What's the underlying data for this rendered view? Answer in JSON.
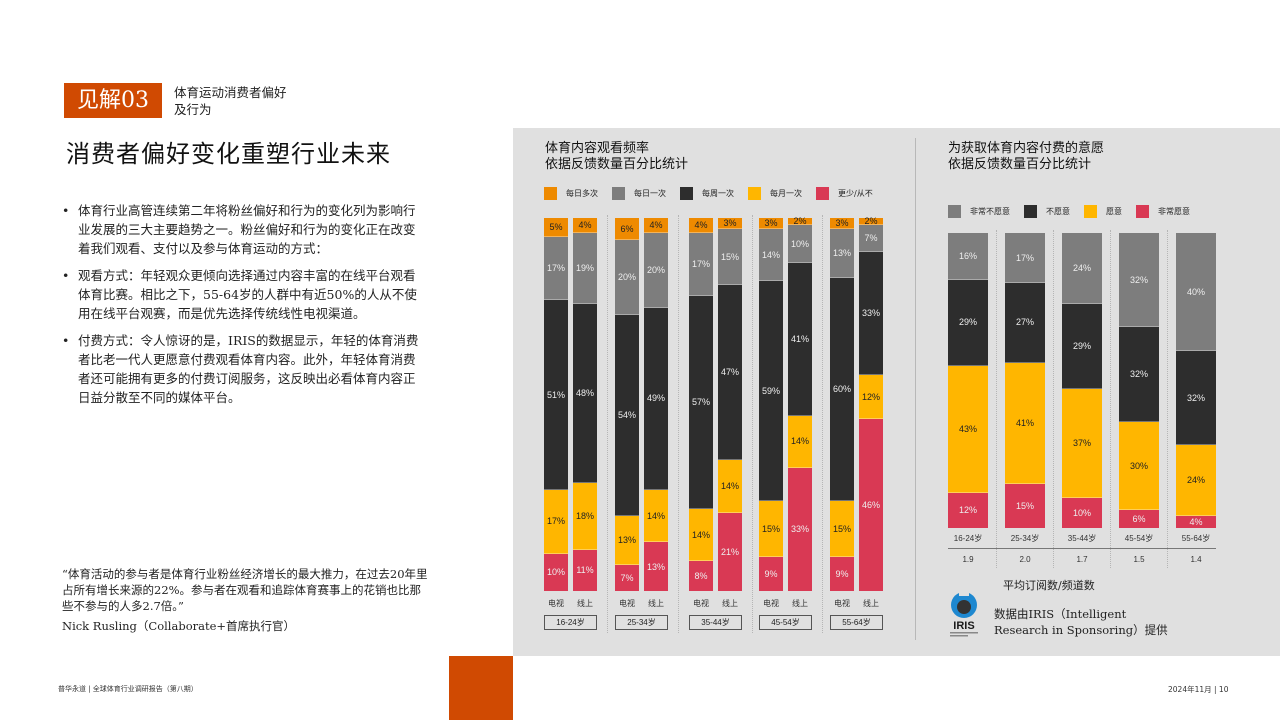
{
  "header": {
    "badge": "见解03",
    "subtitle_line1": "体育运动消费者偏好",
    "subtitle_line2": "及行为",
    "title": "消费者偏好变化重塑行业未来"
  },
  "bullets": [
    "体育行业高管连续第二年将粉丝偏好和行为的变化列为影响行业发展的三大主要趋势之一。粉丝偏好和行为的变化正在改变着我们观看、支付以及参与体育运动的方式：",
    "观看方式：年轻观众更倾向选择通过内容丰富的在线平台观看体育比赛。相比之下，55-64岁的人群中有近50%的人从不使用在线平台观赛，而是优先选择传统线性电视渠道。",
    "付费方式：令人惊讶的是，IRIS的数据显示，年轻的体育消费者比老一代人更愿意付费观看体育内容。此外，年轻体育消费者还可能拥有更多的付费订阅服务，这反映出必看体育内容正日益分散至不同的媒体平台。"
  ],
  "quote": {
    "text": "“体育活动的参与者是体育行业粉丝经济增长的最大推力，在过去20年里占所有增长来源的22%。参与者在观看和追踪体育赛事上的花销也比那些不参与的人多2.7倍。”",
    "author": "Nick Rusling（Collaborate+首席执行官）"
  },
  "footer": {
    "left": "普华永道 | 全球体育行业调研报告（第八期）",
    "right": "2024年11月 | 10"
  },
  "colors": {
    "brand_orange": "#d04a02",
    "multi_daily": "#ee8a00",
    "daily": "#7d7d7d",
    "weekly": "#2d2d2d",
    "monthly": "#ffb600",
    "rarely": "#d93954",
    "panel_bg": "#e0e0e0"
  },
  "chart_data": [
    {
      "type": "bar",
      "stacked": true,
      "title": "体育内容观看频率",
      "subtitle": "依据反馈数量百分比统计",
      "legend": [
        "每日多次",
        "每日一次",
        "每周一次",
        "每月一次",
        "更少/从不"
      ],
      "groups": [
        "16-24岁",
        "25-34岁",
        "35-44岁",
        "45-54岁",
        "55-64岁"
      ],
      "bar_labels": [
        "电视",
        "线上"
      ],
      "categories": [
        "16-24岁 电视",
        "16-24岁 线上",
        "25-34岁 电视",
        "25-34岁 线上",
        "35-44岁 电视",
        "35-44岁 线上",
        "45-54岁 电视",
        "45-54岁 线上",
        "55-64岁 电视",
        "55-64岁 线上"
      ],
      "series": [
        {
          "name": "每日多次",
          "values": [
            5,
            4,
            6,
            4,
            4,
            3,
            3,
            2,
            3,
            2
          ]
        },
        {
          "name": "每日一次",
          "values": [
            17,
            19,
            20,
            20,
            17,
            15,
            14,
            10,
            13,
            7
          ]
        },
        {
          "name": "每周一次",
          "values": [
            51,
            48,
            54,
            49,
            57,
            47,
            59,
            41,
            60,
            33
          ]
        },
        {
          "name": "每月一次",
          "values": [
            17,
            18,
            13,
            14,
            14,
            14,
            15,
            14,
            15,
            12
          ]
        },
        {
          "name": "更少/从不",
          "values": [
            10,
            11,
            7,
            13,
            8,
            21,
            9,
            33,
            9,
            46
          ]
        }
      ],
      "ylim": [
        0,
        100
      ]
    },
    {
      "type": "bar",
      "stacked": true,
      "title": "为获取体育内容付费的意愿",
      "subtitle": "依据反馈数量百分比统计",
      "legend": [
        "非常不愿意",
        "不愿意",
        "愿意",
        "非常愿意"
      ],
      "categories": [
        "16-24岁",
        "25-34岁",
        "35-44岁",
        "45-54岁",
        "55-64岁"
      ],
      "series": [
        {
          "name": "非常不愿意",
          "values": [
            16,
            17,
            24,
            32,
            40
          ]
        },
        {
          "name": "不愿意",
          "values": [
            29,
            27,
            29,
            32,
            32
          ]
        },
        {
          "name": "愿意",
          "values": [
            43,
            41,
            37,
            30,
            24
          ]
        },
        {
          "name": "非常愿意",
          "values": [
            12,
            15,
            10,
            6,
            4
          ]
        }
      ],
      "avg_subscriptions": [
        1.9,
        2.0,
        1.7,
        1.5,
        1.4
      ],
      "avg_caption": "平均订阅数/频道数",
      "ylim": [
        0,
        100
      ]
    }
  ],
  "source": {
    "logo": "IRIS",
    "text": "数据由IRIS（Intelligent Research in Sponsoring）提供"
  }
}
